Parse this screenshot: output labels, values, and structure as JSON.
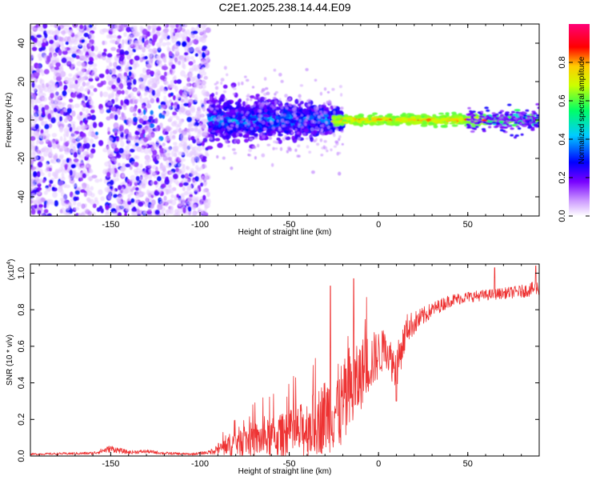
{
  "title": "C2E1.2025.238.14.44.E09",
  "chart_data": [
    {
      "type": "heatmap",
      "name": "spectrogram",
      "xlabel": "Height of straight line (km)",
      "ylabel": "Frequency (Hz)",
      "xlim": [
        -195,
        90
      ],
      "ylim": [
        -50,
        50
      ],
      "xticks": [
        "-150",
        "-100",
        "-50",
        "0",
        "50"
      ],
      "xtick_values": [
        -150,
        -100,
        -50,
        0,
        50
      ],
      "yticks": [
        "-40",
        "-20",
        "0",
        "20",
        "40"
      ],
      "ytick_values": [
        -40,
        -20,
        0,
        20,
        40
      ],
      "colorbar": {
        "label": "Normalized spectral amplitude",
        "range": [
          0,
          1
        ],
        "ticks": [
          "0.0",
          "0.2",
          "0.4",
          "0.6",
          "0.8"
        ],
        "tick_values": [
          0.0,
          0.2,
          0.4,
          0.6,
          0.8
        ],
        "colors": [
          "#ffffff",
          "#cc99ff",
          "#7700ff",
          "#0000ff",
          "#00ccff",
          "#00ff66",
          "#ccff00",
          "#ffcc00",
          "#ff0000",
          "#ff0077"
        ]
      },
      "regions": [
        {
          "x": [
            -195,
            -95
          ],
          "description_level": 0.1,
          "freq_spread": 50
        },
        {
          "x": [
            -95,
            -30
          ],
          "freq_spread": 7,
          "peak_amplitude": 0.4
        },
        {
          "x": [
            -30,
            90
          ],
          "freq_spread": 2,
          "peak_amplitude": 0.95
        }
      ]
    },
    {
      "type": "line",
      "name": "snr",
      "xlabel": "Height of straight line (km)",
      "ylabel": "SNR (10 * v/v)",
      "multiplier": "(x10",
      "multiplier_exp": "4",
      "multiplier_close": ")",
      "xlim": [
        -195,
        90
      ],
      "ylim": [
        0,
        1.05
      ],
      "xticks": [
        "-150",
        "-100",
        "-50",
        "0",
        "50"
      ],
      "xtick_values": [
        -150,
        -100,
        -50,
        0,
        50
      ],
      "yticks": [
        "0.0",
        "0.2",
        "0.4",
        "0.6",
        "0.8",
        "1.0"
      ],
      "ytick_values": [
        0.0,
        0.2,
        0.4,
        0.6,
        0.8,
        1.0
      ],
      "color": "#ee3333",
      "trend_x": [
        -195,
        -160,
        -150,
        -140,
        -130,
        -120,
        -105,
        -95,
        -85,
        -75,
        -65,
        -55,
        -45,
        -35,
        -28,
        -20,
        -14,
        -8,
        -2,
        4,
        10,
        16,
        22,
        30,
        40,
        50,
        60,
        70,
        80,
        90
      ],
      "trend_y": [
        0.01,
        0.015,
        0.04,
        0.02,
        0.025,
        0.015,
        0.01,
        0.02,
        0.06,
        0.1,
        0.1,
        0.12,
        0.14,
        0.2,
        0.26,
        0.3,
        0.38,
        0.5,
        0.55,
        0.6,
        0.48,
        0.7,
        0.74,
        0.8,
        0.85,
        0.87,
        0.88,
        0.89,
        0.9,
        0.92
      ],
      "noise_y": [
        0.005,
        0.008,
        0.02,
        0.01,
        0.01,
        0.008,
        0.006,
        0.01,
        0.06,
        0.09,
        0.1,
        0.12,
        0.15,
        0.18,
        0.22,
        0.25,
        0.22,
        0.18,
        0.15,
        0.1,
        0.12,
        0.08,
        0.06,
        0.04,
        0.035,
        0.03,
        0.03,
        0.03,
        0.035,
        0.04
      ],
      "annotated_peaks": [
        {
          "x": -27,
          "y": 0.93
        },
        {
          "x": -14,
          "y": 0.97
        },
        {
          "x": 10,
          "y": 0.3
        },
        {
          "x": 65,
          "y": 1.03
        },
        {
          "x": 88,
          "y": 1.04
        }
      ]
    }
  ]
}
